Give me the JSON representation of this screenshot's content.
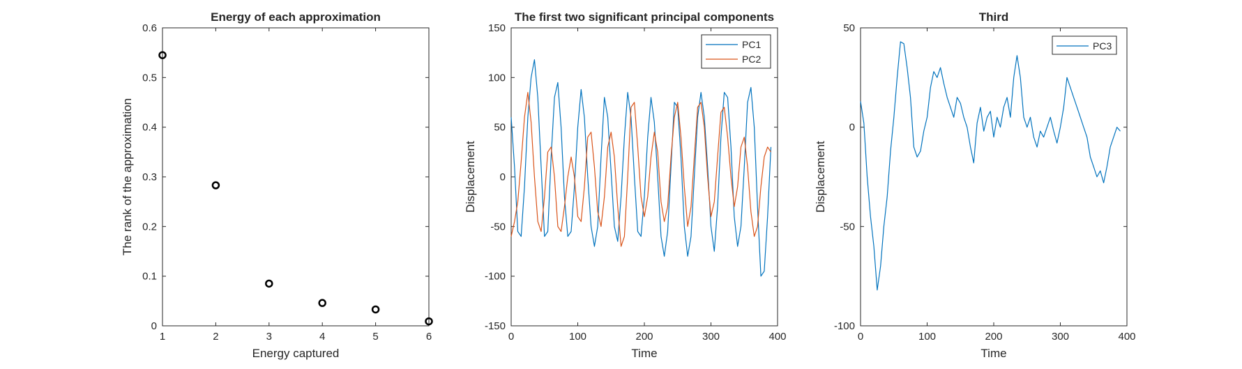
{
  "chart_data": [
    {
      "type": "scatter",
      "title": "Energy of each approximation",
      "xlabel": "Energy captured",
      "ylabel": "The rank of the approximation",
      "xlim": [
        1,
        6
      ],
      "ylim": [
        0,
        0.6
      ],
      "xticks": [
        "1",
        "2",
        "3",
        "4",
        "5",
        "6"
      ],
      "yticks": [
        "0",
        "0.1",
        "0.2",
        "0.3",
        "0.4",
        "0.5",
        "0.6"
      ],
      "marker": "circle",
      "color": "#000000",
      "x": [
        1,
        2,
        3,
        4,
        5,
        6
      ],
      "y": [
        0.545,
        0.283,
        0.085,
        0.046,
        0.033,
        0.009
      ]
    },
    {
      "type": "line",
      "title": "The first two significant principal components",
      "xlabel": "Time",
      "ylabel": "Displacement",
      "xlim": [
        0,
        400
      ],
      "ylim": [
        -150,
        150
      ],
      "xticks": [
        "0",
        "100",
        "200",
        "300",
        "400"
      ],
      "yticks": [
        "-150",
        "-100",
        "-50",
        "0",
        "50",
        "100",
        "150"
      ],
      "legend_position": "top-right",
      "series": [
        {
          "name": "PC1",
          "color": "#0072BD",
          "x": [
            0,
            5,
            10,
            15,
            20,
            25,
            30,
            35,
            40,
            45,
            50,
            55,
            60,
            65,
            70,
            75,
            80,
            85,
            90,
            95,
            100,
            105,
            110,
            115,
            120,
            125,
            130,
            135,
            140,
            145,
            150,
            155,
            160,
            165,
            170,
            175,
            180,
            185,
            190,
            195,
            200,
            205,
            210,
            215,
            220,
            225,
            230,
            235,
            240,
            245,
            250,
            255,
            260,
            265,
            270,
            275,
            280,
            285,
            290,
            295,
            300,
            305,
            310,
            315,
            320,
            325,
            330,
            335,
            340,
            345,
            350,
            355,
            360,
            365,
            370,
            375,
            380,
            385,
            390
          ],
          "y": [
            60,
            10,
            -55,
            -60,
            -10,
            60,
            100,
            118,
            80,
            10,
            -60,
            -55,
            20,
            80,
            95,
            50,
            -20,
            -60,
            -55,
            -10,
            50,
            88,
            60,
            0,
            -50,
            -70,
            -50,
            20,
            80,
            60,
            5,
            -50,
            -65,
            -20,
            40,
            85,
            60,
            0,
            -55,
            -60,
            -20,
            40,
            80,
            55,
            0,
            -60,
            -80,
            -55,
            10,
            75,
            70,
            20,
            -50,
            -80,
            -60,
            0,
            60,
            85,
            60,
            10,
            -50,
            -75,
            -30,
            40,
            85,
            80,
            30,
            -40,
            -70,
            -50,
            10,
            75,
            90,
            50,
            -30,
            -100,
            -95,
            -40,
            30
          ]
        },
        {
          "name": "PC2",
          "color": "#D95319",
          "x": [
            0,
            5,
            10,
            15,
            20,
            25,
            30,
            35,
            40,
            45,
            50,
            55,
            60,
            65,
            70,
            75,
            80,
            85,
            90,
            95,
            100,
            105,
            110,
            115,
            120,
            125,
            130,
            135,
            140,
            145,
            150,
            155,
            160,
            165,
            170,
            175,
            180,
            185,
            190,
            195,
            200,
            205,
            210,
            215,
            220,
            225,
            230,
            235,
            240,
            245,
            250,
            255,
            260,
            265,
            270,
            275,
            280,
            285,
            290,
            295,
            300,
            305,
            310,
            315,
            320,
            325,
            330,
            335,
            340,
            345,
            350,
            355,
            360,
            365,
            370,
            375,
            380,
            385,
            390
          ],
          "y": [
            -60,
            -45,
            -25,
            15,
            60,
            85,
            55,
            0,
            -45,
            -55,
            -20,
            25,
            30,
            0,
            -50,
            -55,
            -30,
            0,
            20,
            0,
            -40,
            -45,
            -10,
            40,
            45,
            10,
            -35,
            -50,
            -20,
            30,
            45,
            20,
            -30,
            -70,
            -60,
            0,
            70,
            75,
            30,
            -20,
            -40,
            -20,
            20,
            45,
            25,
            -25,
            -45,
            -30,
            20,
            60,
            75,
            40,
            -10,
            -50,
            -30,
            20,
            70,
            75,
            50,
            0,
            -40,
            -25,
            20,
            65,
            70,
            40,
            0,
            -30,
            -10,
            30,
            40,
            10,
            -35,
            -60,
            -50,
            -10,
            20,
            30,
            25
          ]
        }
      ]
    },
    {
      "type": "line",
      "title": "Third",
      "xlabel": "Time",
      "ylabel": "Displacement",
      "xlim": [
        0,
        400
      ],
      "ylim": [
        -100,
        50
      ],
      "xticks": [
        "0",
        "100",
        "200",
        "300",
        "400"
      ],
      "yticks": [
        "-100",
        "-50",
        "0",
        "50"
      ],
      "legend_position": "top-right",
      "series": [
        {
          "name": "PC3",
          "color": "#0072BD",
          "x": [
            0,
            5,
            10,
            15,
            20,
            25,
            30,
            35,
            40,
            45,
            50,
            55,
            60,
            65,
            70,
            75,
            80,
            85,
            90,
            95,
            100,
            105,
            110,
            115,
            120,
            125,
            130,
            135,
            140,
            145,
            150,
            155,
            160,
            165,
            170,
            175,
            180,
            185,
            190,
            195,
            200,
            205,
            210,
            215,
            220,
            225,
            230,
            235,
            240,
            245,
            250,
            255,
            260,
            265,
            270,
            275,
            280,
            285,
            290,
            295,
            300,
            305,
            310,
            315,
            320,
            325,
            330,
            335,
            340,
            345,
            350,
            355,
            360,
            365,
            370,
            375,
            380,
            385,
            390
          ],
          "y": [
            13,
            2,
            -25,
            -45,
            -60,
            -82,
            -70,
            -50,
            -35,
            -12,
            5,
            25,
            43,
            42,
            30,
            15,
            -10,
            -15,
            -12,
            -2,
            5,
            20,
            28,
            25,
            30,
            22,
            15,
            10,
            5,
            15,
            12,
            5,
            0,
            -10,
            -18,
            2,
            10,
            -2,
            5,
            8,
            -5,
            5,
            0,
            10,
            15,
            5,
            25,
            36,
            25,
            5,
            0,
            5,
            -5,
            -10,
            -2,
            -5,
            0,
            5,
            -2,
            -8,
            0,
            10,
            25,
            20,
            15,
            10,
            5,
            0,
            -5,
            -15,
            -20,
            -25,
            -22,
            -28,
            -20,
            -10,
            -5,
            0,
            -2
          ]
        }
      ]
    }
  ]
}
